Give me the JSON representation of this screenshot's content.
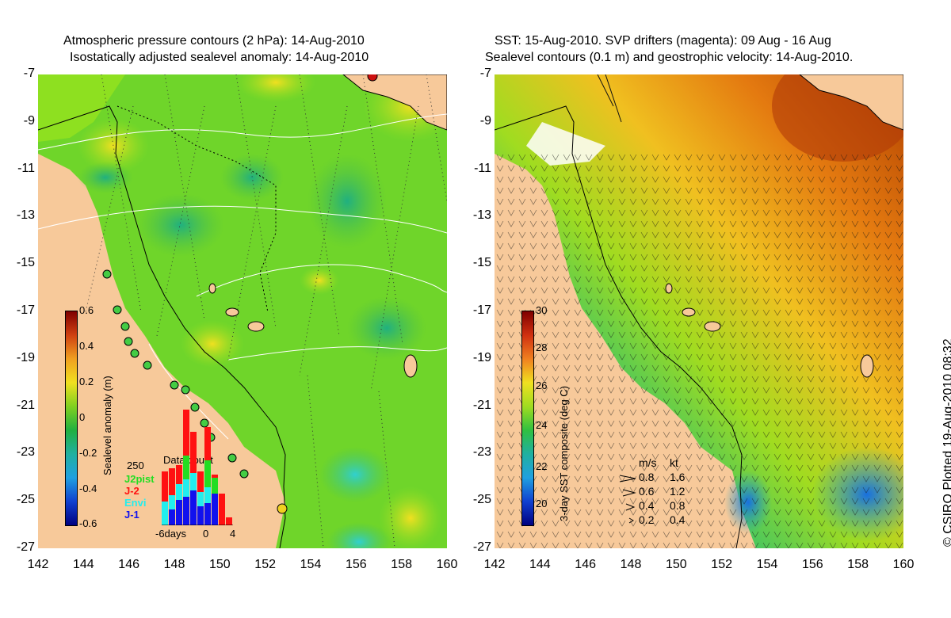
{
  "left_panel": {
    "title_line1": "Atmospheric pressure contours (2 hPa): 14-Aug-2010",
    "title_line2": "Isostatically adjusted sealevel anomaly: 14-Aug-2010",
    "colorbar": {
      "label": "Sealevel anomaly (m)",
      "ticks": [
        "0.6",
        "0.4",
        "0.2",
        "0",
        "-0.2",
        "-0.4",
        "-0.6"
      ]
    },
    "data_count": {
      "title": "Data count",
      "max_label": "250",
      "x_labels": [
        "-6days",
        "0",
        "4"
      ],
      "legend": [
        {
          "name": "J2pist",
          "color": "#22dd22"
        },
        {
          "name": "J-2",
          "color": "#ff1111"
        },
        {
          "name": "Envi",
          "color": "#22eeee"
        },
        {
          "name": "J-1",
          "color": "#1111ee"
        }
      ]
    }
  },
  "right_panel": {
    "title_line1": "SST: 15-Aug-2010. SVP drifters (magenta): 09 Aug - 16 Aug",
    "title_line2": "Sealevel contours (0.1 m) and geostrophic velocity: 14-Aug-2010.",
    "colorbar": {
      "label": "3-day SST composite (deg C)",
      "ticks": [
        "30",
        "28",
        "26",
        "24",
        "22",
        "20"
      ]
    },
    "speed_legend": {
      "header_ms": "m/s",
      "header_kt": "kt",
      "rows": [
        {
          "ms": "0.8",
          "kt": "1.6"
        },
        {
          "ms": "0.6",
          "kt": "1.2"
        },
        {
          "ms": "0.4",
          "kt": "0.8"
        },
        {
          "ms": "0.2",
          "kt": "0.4"
        }
      ]
    }
  },
  "axes": {
    "y_ticks": [
      "-7",
      "-9",
      "-11",
      "-13",
      "-15",
      "-17",
      "-19",
      "-21",
      "-23",
      "-25",
      "-27"
    ],
    "x_ticks": [
      "142",
      "144",
      "146",
      "148",
      "150",
      "152",
      "154",
      "156",
      "158",
      "160"
    ]
  },
  "credit": "© CSIRO Plotted 19-Aug-2010 08:32",
  "colors": {
    "land": "#f7c99a",
    "ocean_mid": "#66dd22",
    "sst_warm": "#e06010",
    "sst_cool": "#1877dd"
  }
}
